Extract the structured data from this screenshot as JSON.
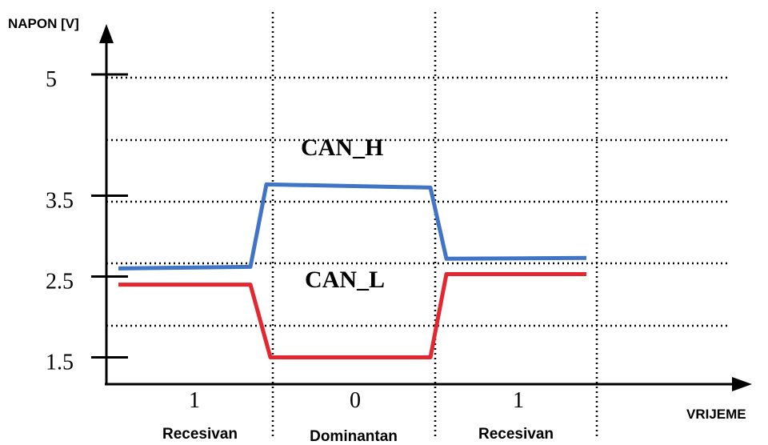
{
  "chart_data": {
    "type": "line",
    "ylabel": "NAPON [V]",
    "xlabel": "VRIJEME",
    "y_ticks": [
      "5",
      "3.5",
      "2.5",
      "1.5"
    ],
    "y_tick_values": [
      5,
      3.5,
      2.5,
      1.5
    ],
    "grid": true,
    "series": [
      {
        "name": "CAN_H",
        "color": "#3f74c6",
        "x": [
          0.0,
          1.65,
          1.85,
          3.9,
          4.1,
          5.85
        ],
        "y": [
          2.6,
          2.62,
          3.64,
          3.6,
          2.72,
          2.73
        ]
      },
      {
        "name": "CAN_L",
        "color": "#e3262f",
        "x": [
          0.0,
          1.65,
          1.9,
          3.9,
          4.1,
          5.85
        ],
        "y": [
          2.4,
          2.4,
          1.5,
          1.5,
          2.53,
          2.53
        ]
      }
    ],
    "bits": [
      {
        "value": "1",
        "state": "Recesivan"
      },
      {
        "value": "0",
        "state": "Dominantan"
      },
      {
        "value": "1",
        "state": "Recesivan"
      }
    ]
  }
}
